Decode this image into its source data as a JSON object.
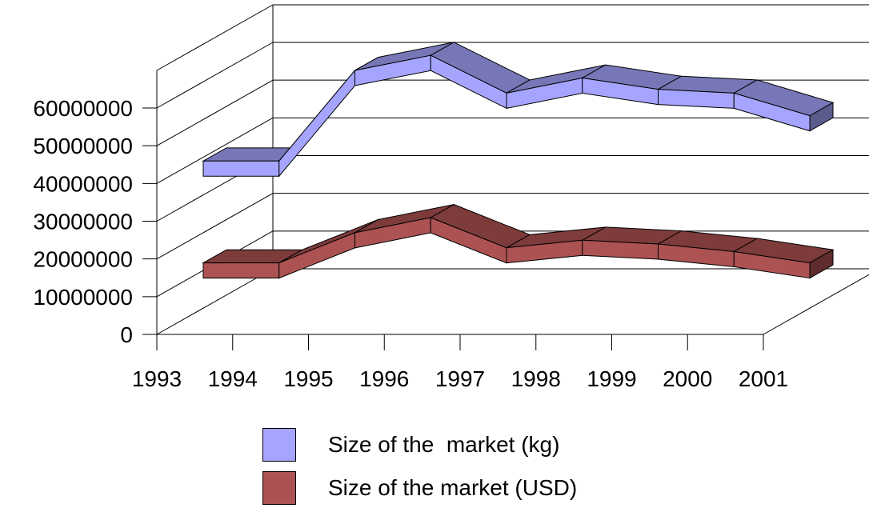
{
  "chart_data": {
    "type": "line",
    "title": "",
    "categories": [
      "1993",
      "1994",
      "1995",
      "1996",
      "1997",
      "1998",
      "1999",
      "2000",
      "2001"
    ],
    "ylim": [
      0,
      60000000
    ],
    "yticks": [
      0,
      10000000,
      20000000,
      30000000,
      40000000,
      50000000,
      60000000
    ],
    "ytick_labels": [
      "0",
      "10000000",
      "20000000",
      "30000000",
      "40000000",
      "50000000",
      "60000000"
    ],
    "grid": true,
    "style": "3d-ribbon",
    "legend_position": "bottom",
    "series": [
      {
        "name": "Size of the  market (kg)",
        "values": [
          39000000,
          39000000,
          63000000,
          67000000,
          57000000,
          61000000,
          58000000,
          57000000,
          51000000
        ],
        "color": "#a5a5ff"
      },
      {
        "name": "Size of the market (USD)",
        "values": [
          12000000,
          12000000,
          20000000,
          24000000,
          16000000,
          18000000,
          17000000,
          15000000,
          12000000
        ],
        "color": "#ad5252"
      }
    ]
  }
}
